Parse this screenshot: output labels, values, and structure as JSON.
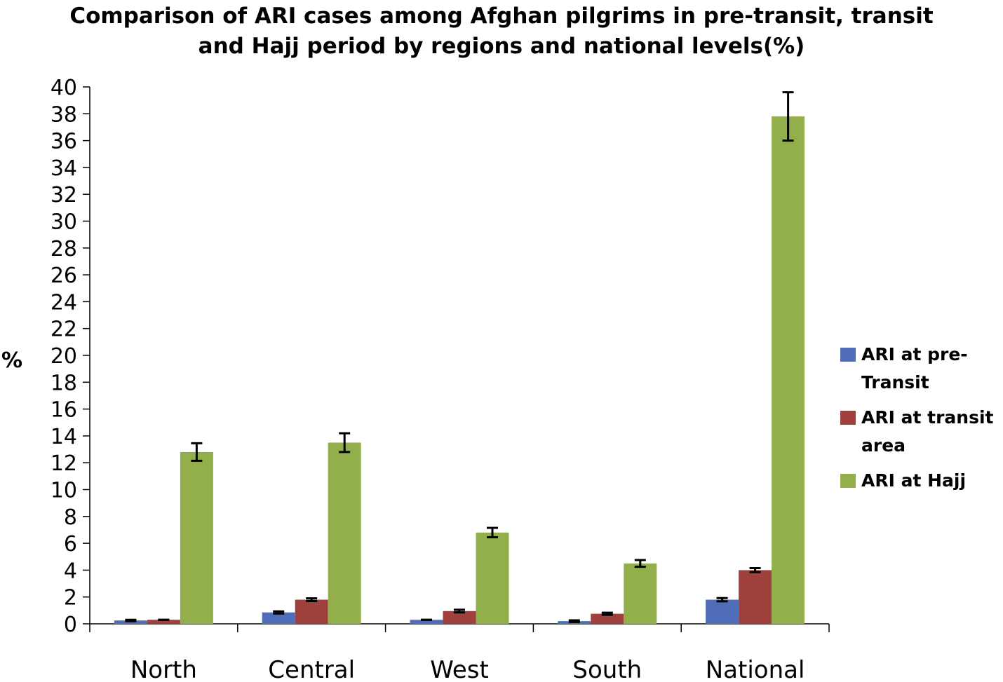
{
  "chart_data": {
    "type": "bar",
    "title_lines": [
      "Comparison of ARI cases among Afghan pilgrims in pre-transit, transit",
      "and Hajj period by regions and national levels(%)"
    ],
    "xlabel": "",
    "ylabel": "%",
    "ylim": [
      0,
      40
    ],
    "yticks": [
      0,
      2,
      4,
      6,
      8,
      10,
      12,
      14,
      16,
      18,
      20,
      22,
      24,
      26,
      28,
      30,
      32,
      34,
      36,
      38,
      40
    ],
    "grid": false,
    "legend_position": "right",
    "categories": [
      "North",
      "Central",
      "West",
      "South",
      "National"
    ],
    "series": [
      {
        "name_lines": [
          "ARI at pre-",
          "Transit"
        ],
        "color": "#4F6DB8",
        "values": [
          0.25,
          0.85,
          0.3,
          0.2,
          1.8
        ],
        "error": [
          0.05,
          0.08,
          0.0,
          0.06,
          0.12
        ]
      },
      {
        "name_lines": [
          "ARI at transit",
          "area"
        ],
        "color": "#A0403C",
        "values": [
          0.3,
          1.8,
          0.95,
          0.75,
          4.0
        ],
        "error": [
          0.0,
          0.1,
          0.1,
          0.08,
          0.15
        ]
      },
      {
        "name_lines": [
          "ARI at Hajj"
        ],
        "color": "#92AF4B",
        "values": [
          12.8,
          13.5,
          6.8,
          4.5,
          37.8
        ],
        "error": [
          0.65,
          0.7,
          0.35,
          0.25,
          1.8
        ]
      }
    ]
  }
}
